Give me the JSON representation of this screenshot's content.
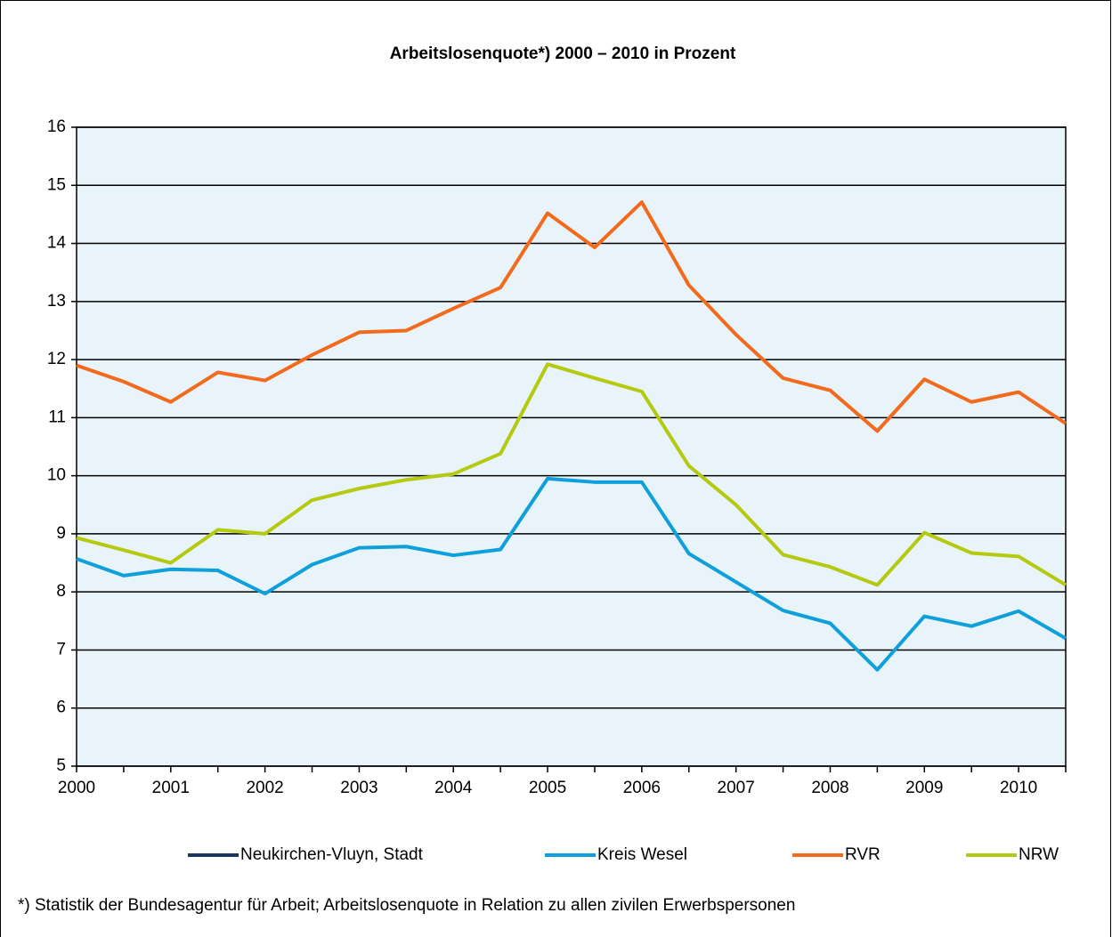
{
  "chart_data": {
    "type": "line",
    "title": "Arbeitslosenquote*) 2000 – 2010 in Prozent",
    "footnote": "*) Statistik der Bundesagentur für Arbeit; Arbeitslosenquote in Relation zu allen zivilen Erwerbspersonen",
    "categories": [
      "2000",
      null,
      "2001",
      null,
      "2002",
      null,
      "2003",
      null,
      "2004",
      null,
      "2005",
      null,
      "2006",
      null,
      "2007",
      null,
      "2008",
      null,
      "2009",
      null,
      "2010",
      null
    ],
    "series": [
      {
        "name": "Neukirchen-Vluyn, Stadt",
        "color": "#17375e",
        "values": [
          null,
          null,
          null,
          null,
          null,
          null,
          null,
          null,
          null,
          null,
          null,
          null,
          null,
          null,
          null,
          null,
          null,
          null,
          null,
          null,
          null,
          null
        ]
      },
      {
        "name": "Kreis Wesel",
        "color": "#0fa0db",
        "values": [
          8.57,
          8.28,
          8.39,
          8.37,
          7.97,
          8.47,
          8.76,
          8.78,
          8.63,
          8.73,
          9.95,
          9.89,
          9.89,
          8.66,
          8.17,
          7.68,
          7.46,
          6.66,
          7.58,
          7.41,
          7.67,
          7.2
        ]
      },
      {
        "name": "RVR",
        "color": "#f26b1d",
        "values": [
          11.9,
          11.62,
          11.27,
          11.78,
          11.64,
          12.08,
          12.47,
          12.5,
          12.88,
          13.24,
          14.52,
          13.93,
          14.71,
          13.28,
          12.43,
          11.68,
          11.47,
          10.77,
          11.66,
          11.27,
          11.44,
          10.9
        ]
      },
      {
        "name": "NRW",
        "color": "#b5c90f",
        "values": [
          8.93,
          8.72,
          8.5,
          9.07,
          9.0,
          9.58,
          9.78,
          9.93,
          10.03,
          10.38,
          11.92,
          11.68,
          11.45,
          10.17,
          9.5,
          8.64,
          8.43,
          8.12,
          9.02,
          8.67,
          8.61,
          8.12
        ]
      }
    ],
    "ylim": [
      5,
      16
    ],
    "yticks": [
      5,
      6,
      7,
      8,
      9,
      10,
      11,
      12,
      13,
      14,
      15,
      16
    ],
    "grid": true
  }
}
